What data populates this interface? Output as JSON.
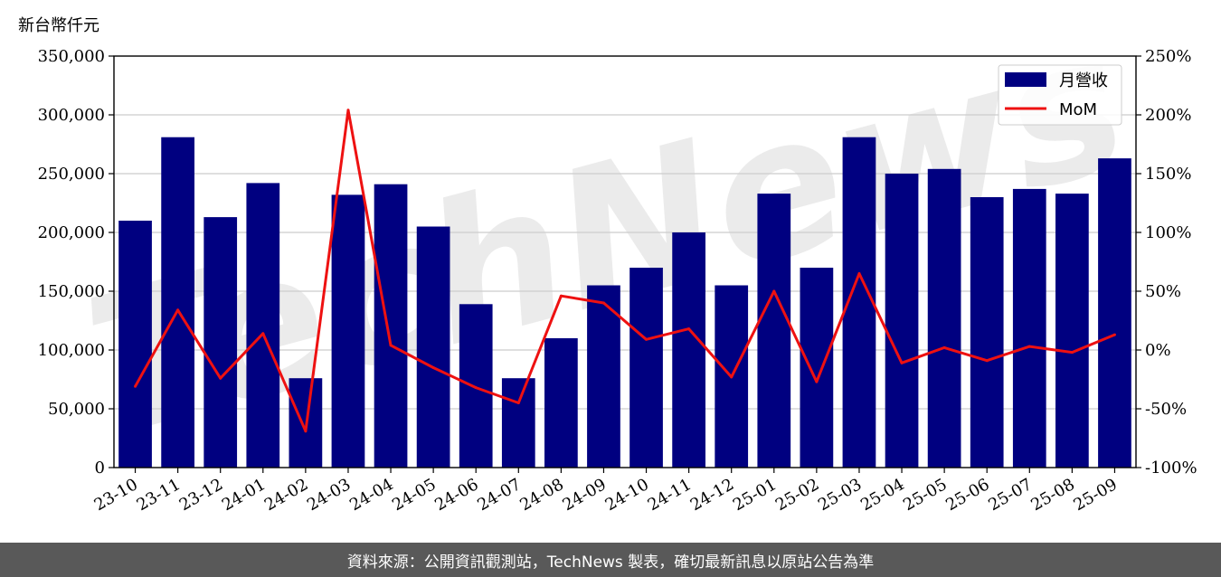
{
  "chart_data": {
    "type": "bar",
    "y_unit_label": "新台幣仟元",
    "categories": [
      "23-10",
      "23-11",
      "23-12",
      "24-01",
      "24-02",
      "24-03",
      "24-04",
      "24-05",
      "24-06",
      "24-07",
      "24-08",
      "24-09",
      "24-10",
      "24-11",
      "24-12",
      "25-01",
      "25-02",
      "25-03",
      "25-04",
      "25-05",
      "25-06",
      "25-07",
      "25-08",
      "25-09"
    ],
    "series": [
      {
        "name": "月營收",
        "type": "bar",
        "axis": "left",
        "color": "#000080",
        "values": [
          210000,
          281000,
          213000,
          242000,
          76000,
          232000,
          241000,
          205000,
          139000,
          76000,
          110000,
          155000,
          170000,
          200000,
          155000,
          233000,
          170000,
          281000,
          250000,
          254000,
          230000,
          237000,
          233000,
          263000
        ]
      },
      {
        "name": "MoM",
        "type": "line",
        "axis": "right",
        "color": "#ee1111",
        "values": [
          -31,
          34,
          -24,
          14,
          -69,
          204,
          4,
          -15,
          -32,
          -45,
          46,
          40,
          9,
          18,
          -23,
          50,
          -27,
          65,
          -11,
          2,
          -9,
          3,
          -2,
          13
        ]
      }
    ],
    "ylim_left": [
      0,
      350000
    ],
    "yticks_left": [
      0,
      50000,
      100000,
      150000,
      200000,
      250000,
      300000,
      350000
    ],
    "yticks_left_labels": [
      "0",
      "50,000",
      "100,000",
      "150,000",
      "200,000",
      "250,000",
      "300,000",
      "350,000"
    ],
    "ylim_right": [
      -100,
      250
    ],
    "yticks_right_labels": [
      "-100%",
      "-50%",
      "0%",
      "50%",
      "100%",
      "150%",
      "200%",
      "250%"
    ],
    "grid": true,
    "legend_position": "top-right"
  },
  "watermark": {
    "text": "TechNews"
  },
  "footer": {
    "text": "資料來源：公開資訊觀測站，TechNews 製表，確切最新訊息以原站公告為準"
  }
}
